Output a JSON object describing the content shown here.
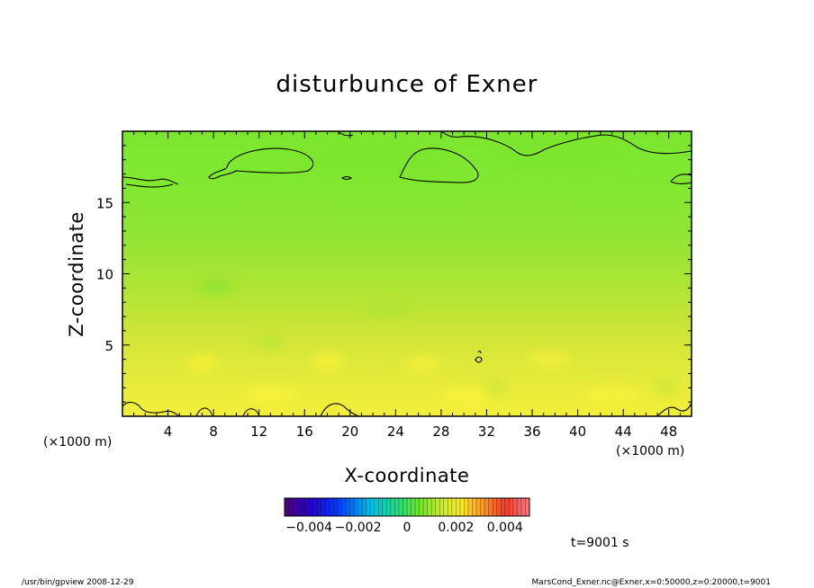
{
  "chart_data": {
    "type": "heatmap",
    "title": "disturbunce of Exner",
    "xlabel": "X-coordinate",
    "ylabel": "Z-coordinate",
    "x_unit_label": "(×1000 m)",
    "z_unit_label": "(×1000 m)",
    "xlim": [
      0,
      50
    ],
    "ylim": [
      0,
      20
    ],
    "x_ticks": [
      "4",
      "8",
      "12",
      "16",
      "20",
      "24",
      "28",
      "32",
      "36",
      "40",
      "44",
      "48"
    ],
    "x_tick_values": [
      4,
      8,
      12,
      16,
      20,
      24,
      28,
      32,
      36,
      40,
      44,
      48
    ],
    "y_ticks": [
      "5",
      "10",
      "15"
    ],
    "y_tick_values": [
      5,
      10,
      15
    ],
    "colorbar": {
      "min": -0.005,
      "max": 0.005,
      "tick_labels": [
        "−0.004",
        "−0.002",
        "0",
        "0.002",
        "0.004"
      ],
      "tick_values": [
        -0.004,
        -0.002,
        0,
        0.002,
        0.004
      ]
    },
    "field_summary": [
      {
        "z": 0,
        "value": 0.0017
      },
      {
        "z": 5,
        "value": 0.0013
      },
      {
        "z": 10,
        "value": 0.0009
      },
      {
        "z": 15,
        "value": 0.0005
      },
      {
        "z": 20,
        "value": 0.0003
      }
    ],
    "time_label": "t=9001 s"
  },
  "footer": {
    "left": "/usr/bin/gpview   2008-12-29",
    "right": "MarsCond_Exner.nc@Exner,x=0:50000,z=0:20000,t=9001"
  },
  "colors": {
    "background": "#ffffff",
    "contour": "#000000"
  }
}
